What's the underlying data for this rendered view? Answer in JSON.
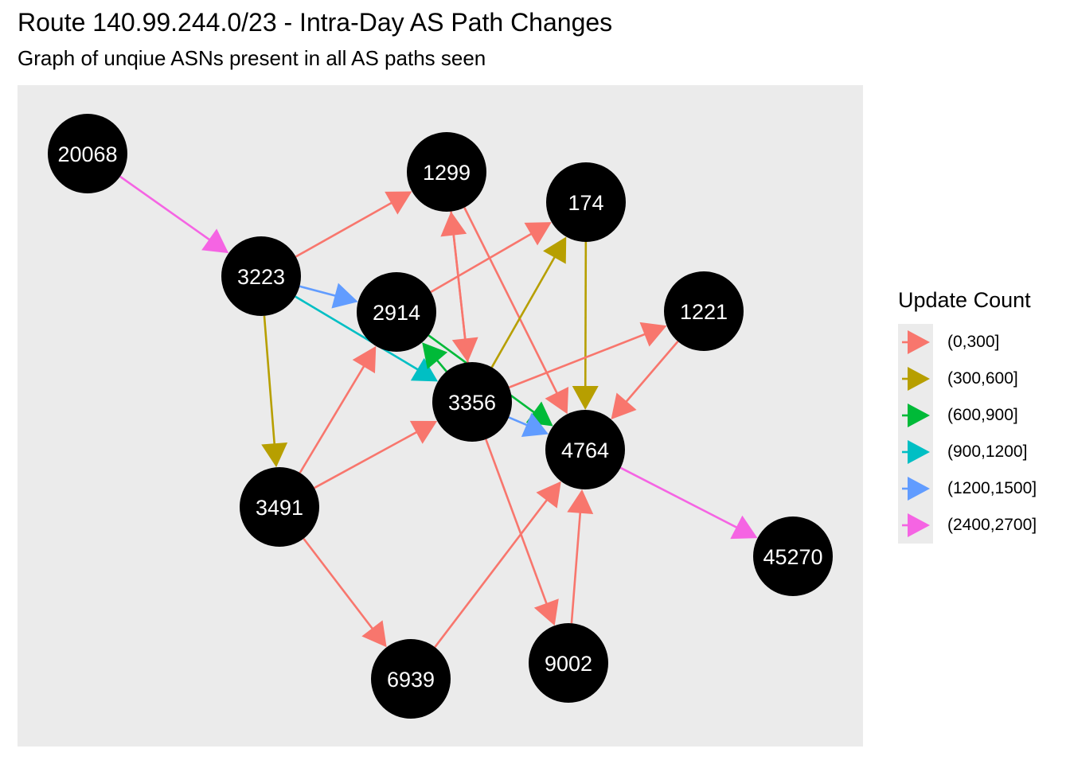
{
  "title": "Route 140.99.244.0/23 - Intra-Day AS Path Changes",
  "subtitle": "Graph of unqiue ASNs present in all AS paths seen",
  "legend": {
    "title": "Update Count",
    "items": [
      {
        "label": "(0,300]",
        "color": "#F8766D"
      },
      {
        "label": "(300,600]",
        "color": "#B79F00"
      },
      {
        "label": "(600,900]",
        "color": "#00BA38"
      },
      {
        "label": "(900,1200]",
        "color": "#00BFC4"
      },
      {
        "label": "(1200,1500]",
        "color": "#619CFF"
      },
      {
        "label": "(2400,2700]",
        "color": "#F564E3"
      }
    ]
  },
  "nodes": [
    "20068",
    "1299",
    "174",
    "3223",
    "2914",
    "1221",
    "3356",
    "4764",
    "3491",
    "45270",
    "6939",
    "9002"
  ],
  "edges": [
    {
      "from": "20068",
      "to": "3223",
      "update_count": "(2400,2700]"
    },
    {
      "from": "3223",
      "to": "1299",
      "update_count": "(0,300]"
    },
    {
      "from": "3223",
      "to": "2914",
      "update_count": "(1200,1500]"
    },
    {
      "from": "3223",
      "to": "3356",
      "update_count": "(900,1200]"
    },
    {
      "from": "3223",
      "to": "3491",
      "update_count": "(300,600]"
    },
    {
      "from": "2914",
      "to": "174",
      "update_count": "(0,300]"
    },
    {
      "from": "2914",
      "to": "4764",
      "update_count": "(600,900]"
    },
    {
      "from": "3356",
      "to": "2914",
      "update_count": "(600,900]"
    },
    {
      "from": "1299",
      "to": "3356",
      "update_count": "(0,300]"
    },
    {
      "from": "3356",
      "to": "1299",
      "update_count": "(0,300]"
    },
    {
      "from": "1299",
      "to": "4764",
      "update_count": "(0,300]"
    },
    {
      "from": "3356",
      "to": "174",
      "update_count": "(300,600]"
    },
    {
      "from": "174",
      "to": "4764",
      "update_count": "(300,600]"
    },
    {
      "from": "3356",
      "to": "1221",
      "update_count": "(0,300]"
    },
    {
      "from": "1221",
      "to": "4764",
      "update_count": "(0,300]"
    },
    {
      "from": "3356",
      "to": "4764",
      "update_count": "(1200,1500]"
    },
    {
      "from": "3356",
      "to": "9002",
      "update_count": "(0,300]"
    },
    {
      "from": "3491",
      "to": "2914",
      "update_count": "(0,300]"
    },
    {
      "from": "3491",
      "to": "3356",
      "update_count": "(0,300]"
    },
    {
      "from": "3491",
      "to": "6939",
      "update_count": "(0,300]"
    },
    {
      "from": "6939",
      "to": "4764",
      "update_count": "(0,300]"
    },
    {
      "from": "9002",
      "to": "4764",
      "update_count": "(0,300]"
    },
    {
      "from": "4764",
      "to": "45270",
      "update_count": "(2400,2700]"
    }
  ]
}
